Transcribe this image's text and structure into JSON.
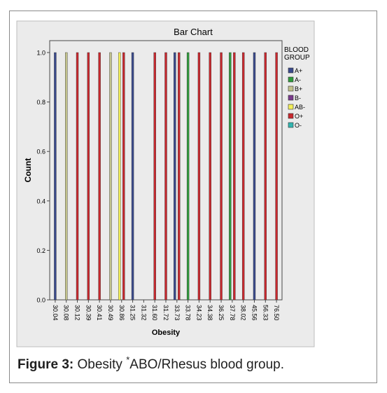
{
  "chart_data": {
    "type": "bar",
    "title": "Bar Chart",
    "xlabel": "Obesity",
    "ylabel": "Count",
    "ylim": [
      0,
      1.0
    ],
    "yticks": [
      "0.0",
      "0.2",
      "0.4",
      "0.6",
      "0.8",
      "1.0"
    ],
    "categories": [
      "30.04",
      "30.08",
      "30.12",
      "30.39",
      "30.41",
      "30.49",
      "30.86",
      "31.25",
      "31.32",
      "31.60",
      "31.72",
      "33.73",
      "33.78",
      "34.23",
      "34.38",
      "36.25",
      "37.78",
      "38.02",
      "45.56",
      "56.33",
      "76.50"
    ],
    "legend": {
      "title_lines": [
        "BLOOD",
        "GROUP"
      ],
      "position": "right",
      "entries": [
        {
          "name": "A+",
          "color": "#3a4a8c"
        },
        {
          "name": "A-",
          "color": "#2f9a3c"
        },
        {
          "name": "B+",
          "color": "#c2c28c"
        },
        {
          "name": "B-",
          "color": "#7a3b8c"
        },
        {
          "name": "AB-",
          "color": "#f2ee5a"
        },
        {
          "name": "O+",
          "color": "#c8282e"
        },
        {
          "name": "O-",
          "color": "#33b5b0"
        }
      ]
    },
    "bars": [
      {
        "category": "30.04",
        "group": "A+",
        "value": 1
      },
      {
        "category": "30.08",
        "group": "B+",
        "value": 1
      },
      {
        "category": "30.12",
        "group": "O+",
        "value": 1
      },
      {
        "category": "30.39",
        "group": "O+",
        "value": 1
      },
      {
        "category": "30.41",
        "group": "O+",
        "value": 1
      },
      {
        "category": "30.49",
        "group": "B+",
        "value": 1
      },
      {
        "category": "30.86",
        "group": "AB-",
        "value": 1
      },
      {
        "category": "30.86",
        "group": "O+",
        "value": 1
      },
      {
        "category": "31.25",
        "group": "A+",
        "value": 1
      },
      {
        "category": "31.60",
        "group": "O+",
        "value": 1
      },
      {
        "category": "31.72",
        "group": "O+",
        "value": 1
      },
      {
        "category": "33.73",
        "group": "A+",
        "value": 1
      },
      {
        "category": "33.73",
        "group": "O+",
        "value": 1
      },
      {
        "category": "33.78",
        "group": "A-",
        "value": 1
      },
      {
        "category": "34.23",
        "group": "O+",
        "value": 1
      },
      {
        "category": "34.38",
        "group": "O+",
        "value": 1
      },
      {
        "category": "36.25",
        "group": "O+",
        "value": 1
      },
      {
        "category": "37.78",
        "group": "A-",
        "value": 1
      },
      {
        "category": "37.78",
        "group": "O+",
        "value": 1
      },
      {
        "category": "38.02",
        "group": "O+",
        "value": 1
      },
      {
        "category": "45.56",
        "group": "A+",
        "value": 1
      },
      {
        "category": "56.33",
        "group": "O+",
        "value": 1
      },
      {
        "category": "76.50",
        "group": "O+",
        "value": 1
      }
    ],
    "grid": false
  },
  "caption": {
    "label": "Figure 3:",
    "text_before": "Obesity ",
    "superscript": "*",
    "text_after": "ABO/Rhesus blood group."
  }
}
